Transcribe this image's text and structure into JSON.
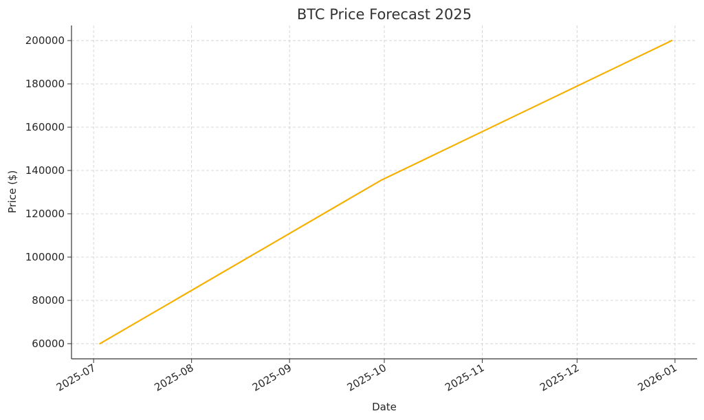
{
  "chart_data": {
    "type": "line",
    "title": "BTC Price Forecast 2025",
    "xlabel": "Date",
    "ylabel": "Price ($)",
    "x_ticks": [
      "2025-07",
      "2025-08",
      "2025-09",
      "2025-10",
      "2025-11",
      "2025-12",
      "2026-01"
    ],
    "y_ticks": [
      60000,
      80000,
      100000,
      120000,
      140000,
      160000,
      180000,
      200000
    ],
    "xlim": [
      "2025-06-24",
      "2026-01-08"
    ],
    "ylim": [
      53000,
      207000
    ],
    "grid": true,
    "series": [
      {
        "color": "#f5b000",
        "points": [
          {
            "x": "2025-07-03",
            "y": 60000
          },
          {
            "x": "2025-09-30",
            "y": 135500
          },
          {
            "x": "2025-12-31",
            "y": 200000
          }
        ]
      }
    ]
  }
}
